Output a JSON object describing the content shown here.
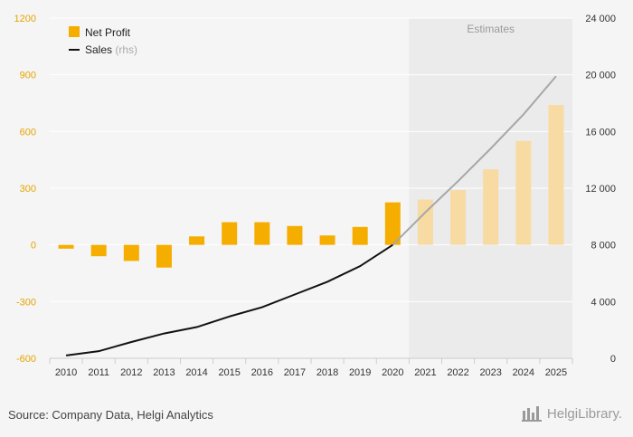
{
  "source_text": "Source: Company Data, Helgi Analytics",
  "brand_text": "HelgiLibrary.",
  "colors": {
    "background": "#f5f5f5",
    "gridline": "#ffffff",
    "estimates_band": "#ebebeb",
    "net_profit": "#f5ad00",
    "net_profit_estimate": "#f7dba3",
    "sales": "#111111",
    "sales_estimate": "#a7a7a7",
    "left_axis_text": "#e6a400",
    "right_axis_text": "#333333"
  },
  "chart_data": {
    "type": "bar",
    "title": "",
    "categories": [
      "2010",
      "2011",
      "2012",
      "2013",
      "2014",
      "2015",
      "2016",
      "2017",
      "2018",
      "2019",
      "2020",
      "2021",
      "2022",
      "2023",
      "2024",
      "2025"
    ],
    "estimate_start_index": 11,
    "estimates_label": "Estimates",
    "series": [
      {
        "name": "Net Profit",
        "type": "bar",
        "axis": "left",
        "values": [
          -20,
          -60,
          -85,
          -120,
          45,
          120,
          120,
          100,
          50,
          95,
          225,
          240,
          290,
          400,
          550,
          740
        ]
      },
      {
        "name": "Sales",
        "name_suffix": "(rhs)",
        "type": "line",
        "axis": "right",
        "values": [
          200,
          500,
          1150,
          1750,
          2200,
          2950,
          3600,
          4500,
          5400,
          6500,
          8000,
          10300,
          12500,
          14800,
          17200,
          19900
        ]
      }
    ],
    "y_left": {
      "ylim": [
        -600,
        1200
      ],
      "ticks": [
        "-600",
        "-300",
        "0",
        "300",
        "600",
        "900",
        "1200"
      ],
      "tick_values": [
        -600,
        -300,
        0,
        300,
        600,
        900,
        1200
      ]
    },
    "y_right": {
      "ylim": [
        0,
        24000
      ],
      "ticks": [
        "0",
        "4 000",
        "8 000",
        "12 000",
        "16 000",
        "20 000",
        "24 000"
      ],
      "tick_values": [
        0,
        4000,
        8000,
        12000,
        16000,
        20000,
        24000
      ]
    },
    "legend": "top-left",
    "grid": true
  }
}
